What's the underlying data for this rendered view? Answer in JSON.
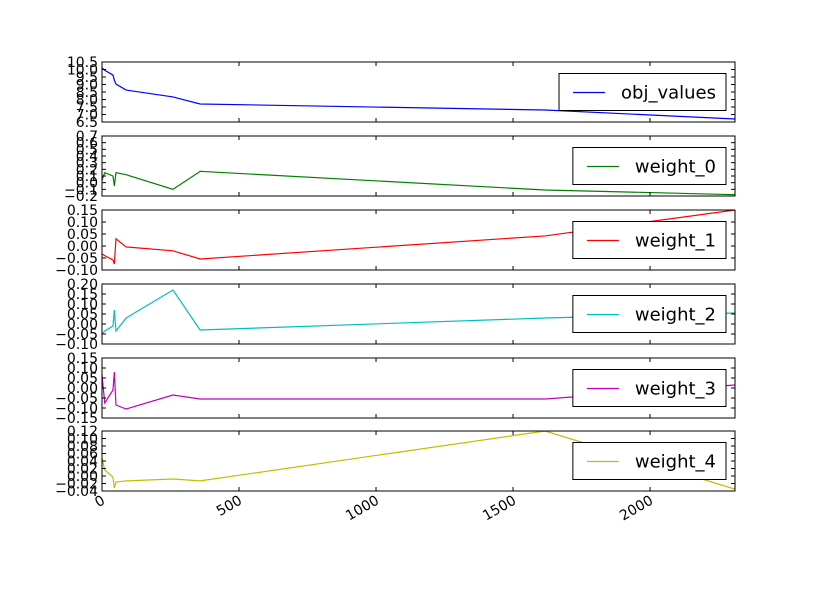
{
  "chart_data": [
    {
      "type": "line",
      "x": [
        0,
        10,
        40,
        45,
        51,
        88,
        259,
        358,
        1617,
        2310
      ],
      "series": [
        {
          "name": "obj_values",
          "color": "#0000ff",
          "values": [
            10.1,
            9.95,
            9.63,
            9.3,
            9.03,
            8.63,
            8.17,
            7.7,
            7.3,
            6.7
          ]
        }
      ],
      "xlim": [
        0,
        2310
      ],
      "xticks": [
        0,
        500,
        1000,
        1500,
        2000
      ],
      "ylim": [
        6.5,
        10.5
      ],
      "yticks": [
        6.5,
        {
          "value": 7,
          "label": "7.0"
        },
        7.5,
        {
          "value": 8,
          "label": "8.0"
        },
        8.5,
        {
          "value": 9,
          "label": "9.0"
        },
        9.5,
        {
          "value": 10,
          "label": "10.0"
        },
        10.5
      ],
      "legend": "center right"
    },
    {
      "type": "line",
      "x": [
        0,
        10,
        40,
        45,
        51,
        88,
        259,
        358,
        1617,
        2310
      ],
      "series": [
        {
          "name": "weight_0",
          "color": "#008000",
          "values": [
            0.04,
            0.15,
            0.1,
            -0.05,
            0.15,
            0.12,
            -0.1,
            0.17,
            -0.11,
            -0.18
          ]
        }
      ],
      "xlim": [
        0,
        2310
      ],
      "xticks": [
        0,
        500,
        1000,
        1500,
        2000
      ],
      "ylim": [
        -0.2,
        0.7
      ],
      "yticks": [
        {
          "value": -0.2,
          "label": "−0.2"
        },
        {
          "value": -0.1,
          "label": "−0.1"
        },
        {
          "value": 0,
          "label": "0.0"
        },
        0.1,
        0.2,
        0.3,
        0.4,
        0.5,
        0.6,
        0.7
      ],
      "legend": "center right"
    },
    {
      "type": "line",
      "x": [
        0,
        10,
        40,
        45,
        51,
        88,
        259,
        358,
        1617,
        2310
      ],
      "series": [
        {
          "name": "weight_1",
          "color": "#ff0000",
          "values": [
            -0.033,
            -0.04,
            -0.058,
            -0.075,
            0.03,
            -0.004,
            -0.02,
            -0.054,
            0.042,
            0.15
          ]
        }
      ],
      "xlim": [
        0,
        2310
      ],
      "xticks": [
        0,
        500,
        1000,
        1500,
        2000
      ],
      "ylim": [
        -0.1,
        0.15
      ],
      "yticks": [
        {
          "value": -0.1,
          "label": "−0.10"
        },
        {
          "value": -0.05,
          "label": "−0.05"
        },
        {
          "value": 0,
          "label": "0.00"
        },
        0.05,
        {
          "value": 0.1,
          "label": "0.10"
        },
        0.15
      ],
      "legend": "center right"
    },
    {
      "type": "line",
      "x": [
        0,
        10,
        40,
        45,
        51,
        88,
        259,
        358,
        1617,
        2310
      ],
      "series": [
        {
          "name": "weight_2",
          "color": "#00bfbf",
          "values": [
            -0.05,
            -0.035,
            -0.01,
            0.07,
            -0.035,
            0.03,
            0.17,
            -0.03,
            0.03,
            0.055
          ]
        }
      ],
      "xlim": [
        0,
        2310
      ],
      "xticks": [
        0,
        500,
        1000,
        1500,
        2000
      ],
      "ylim": [
        -0.1,
        0.2
      ],
      "yticks": [
        {
          "value": -0.1,
          "label": "−0.10"
        },
        {
          "value": -0.05,
          "label": "−0.05"
        },
        {
          "value": 0,
          "label": "0.00"
        },
        0.05,
        {
          "value": 0.1,
          "label": "0.10"
        },
        0.15,
        {
          "value": 0.2,
          "label": "0.20"
        }
      ],
      "legend": "center right"
    },
    {
      "type": "line",
      "x": [
        0,
        10,
        40,
        45,
        51,
        88,
        259,
        358,
        1617,
        2310
      ],
      "series": [
        {
          "name": "weight_3",
          "color": "#bf00bf",
          "values": [
            0.065,
            -0.075,
            -0.01,
            0.08,
            -0.085,
            -0.105,
            -0.035,
            -0.055,
            -0.055,
            0.015
          ]
        }
      ],
      "xlim": [
        0,
        2310
      ],
      "xticks": [
        0,
        500,
        1000,
        1500,
        2000
      ],
      "ylim": [
        -0.15,
        0.15
      ],
      "yticks": [
        {
          "value": -0.15,
          "label": "−0.15"
        },
        {
          "value": -0.1,
          "label": "−0.10"
        },
        {
          "value": -0.05,
          "label": "−0.05"
        },
        {
          "value": 0,
          "label": "0.00"
        },
        0.05,
        {
          "value": 0.1,
          "label": "0.10"
        },
        0.15
      ],
      "legend": "center right"
    },
    {
      "type": "line",
      "x": [
        0,
        10,
        40,
        45,
        51,
        88,
        259,
        358,
        1617,
        2310
      ],
      "series": [
        {
          "name": "weight_4",
          "color": "#bfbf00",
          "values": [
            0.048,
            0.016,
            -0.003,
            -0.032,
            -0.016,
            -0.013,
            -0.008,
            -0.013,
            0.12,
            -0.035
          ]
        }
      ],
      "xlim": [
        0,
        2310
      ],
      "xticks": [
        0,
        500,
        1000,
        1500,
        2000
      ],
      "ylim": [
        -0.04,
        0.12
      ],
      "yticks": [
        {
          "value": -0.04,
          "label": "−0.04"
        },
        {
          "value": -0.02,
          "label": "−0.02"
        },
        {
          "value": 0,
          "label": "0.00"
        },
        0.02,
        0.04,
        0.06,
        0.08,
        {
          "value": 0.1,
          "label": "0.10"
        },
        0.12
      ],
      "legend": "center right"
    }
  ]
}
